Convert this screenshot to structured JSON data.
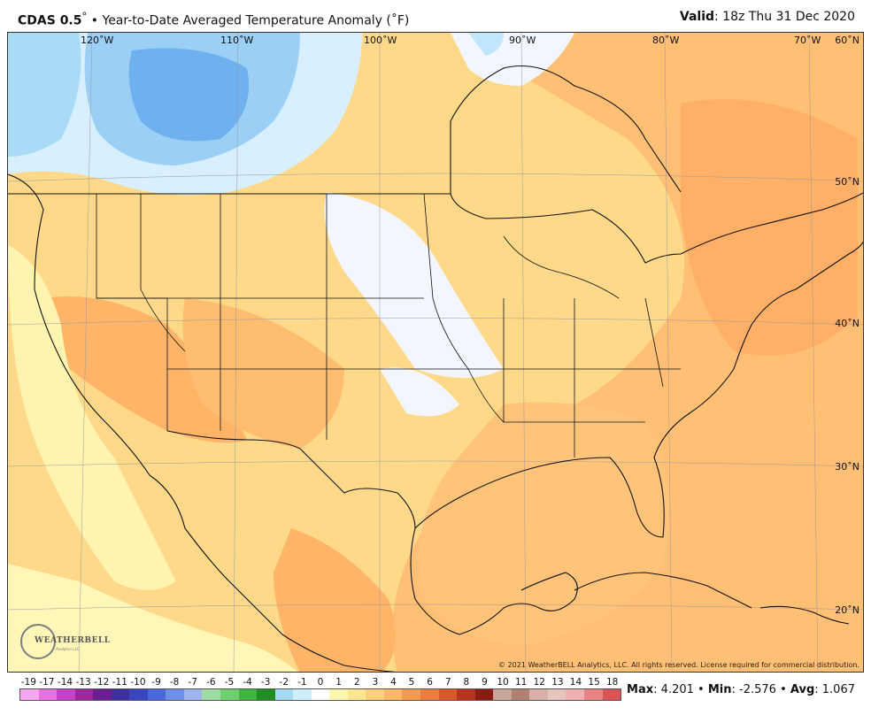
{
  "header": {
    "model": "CDAS 0.5",
    "model_suffix": "°",
    "separator": "•",
    "product": "Year-to-Date Averaged Temperature Anomaly (˚F)",
    "valid_label": "Valid",
    "valid_time": ": 18z Thu 31 Dec 2020"
  },
  "map": {
    "longitude_labels": [
      "120˚W",
      "110˚W",
      "100˚W",
      "90˚W",
      "80˚W",
      "70˚W"
    ],
    "latitude_labels": [
      "60˚N",
      "50˚N",
      "40˚N",
      "30˚N",
      "20˚N"
    ],
    "copyright": "© 2021 WeatherBELL Analytics, LLC. All rights reserved. License required for commercial distribution.",
    "logo_text": "WEATHERBELL",
    "logo_sub": "Analytics LLC"
  },
  "legend": {
    "labels": [
      "-19",
      "-17",
      "-14",
      "-13",
      "-12",
      "-11",
      "-10",
      "-9",
      "-8",
      "-7",
      "-6",
      "-5",
      "-4",
      "-3",
      "-2",
      "-1",
      "0",
      "1",
      "2",
      "3",
      "4",
      "5",
      "6",
      "7",
      "8",
      "9",
      "10",
      "11",
      "12",
      "13",
      "14",
      "15",
      "18"
    ],
    "colors": [
      "#f7a6f0",
      "#e86fe0",
      "#c640c8",
      "#a0269e",
      "#6c1f93",
      "#3d2fa0",
      "#3a45c0",
      "#4a67dc",
      "#6f8ee8",
      "#9fb3f0",
      "#9fdba0",
      "#6fcf6e",
      "#3fb43e",
      "#1f8f25",
      "#a6d9f2",
      "#cfeefc",
      "#ffffff",
      "#fff6b0",
      "#ffe58f",
      "#ffcf7a",
      "#ffb865",
      "#f99a4f",
      "#ed7b3d",
      "#d9582a",
      "#b8351d",
      "#8c1c12",
      "#c8a69a",
      "#b08070",
      "#d9b0a8",
      "#e8c4bf",
      "#f0b0b0",
      "#e88484",
      "#d95555"
    ]
  },
  "stats": {
    "max_label": "Max",
    "max_value": ": 4.201",
    "min_label": "Min",
    "min_value": ": -2.576",
    "avg_label": "Avg",
    "avg_value": ": 1.067",
    "sep": "•"
  }
}
